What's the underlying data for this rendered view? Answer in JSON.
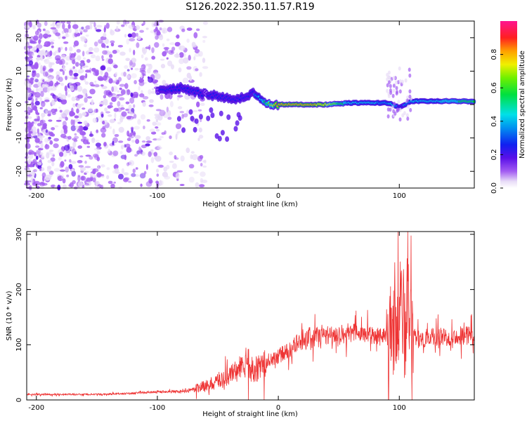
{
  "title": "S126.2022.350.11.57.R19",
  "chart_data": [
    {
      "type": "heatmap",
      "xlabel": "Height of straight line (km)",
      "ylabel": "Frequency (Hz)",
      "xlim": [
        -208,
        162
      ],
      "ylim": [
        -25,
        25
      ],
      "xticks": [
        -200,
        -100,
        0,
        100
      ],
      "yticks": [
        -20,
        -10,
        0,
        10,
        20
      ],
      "colorbar": {
        "label": "Normalized spectral amplitude",
        "range": [
          0.0,
          1.0
        ],
        "ticks": [
          "0.0",
          "0.2",
          "0.4",
          "0.6",
          "0.8"
        ],
        "tick_values": [
          0.0,
          0.2,
          0.4,
          0.6,
          0.8
        ]
      },
      "ridge": {
        "x": [
          -100,
          -90,
          -80,
          -70,
          -60,
          -50,
          -40,
          -30,
          -20,
          -10,
          0,
          20,
          40,
          60,
          80,
          90,
          95,
          100,
          110,
          130,
          162
        ],
        "freq": [
          4,
          4.5,
          5,
          4,
          3,
          2.5,
          1.5,
          2,
          3.5,
          0,
          0,
          0,
          0,
          0.5,
          0.5,
          0.5,
          0,
          -1,
          1,
          1,
          1
        ],
        "amplitude": [
          0.25,
          0.3,
          0.35,
          0.3,
          0.25,
          0.3,
          0.35,
          0.3,
          0.35,
          0.6,
          0.9,
          0.85,
          0.8,
          0.45,
          0.45,
          0.4,
          0.5,
          0.3,
          0.45,
          0.5,
          0.6
        ]
      },
      "noise_region": [
        -208,
        -60
      ]
    },
    {
      "type": "line",
      "xlabel": "Height of straight line (km)",
      "ylabel": "SNR (10 * v/v)",
      "xlim": [
        -208,
        162
      ],
      "ylim": [
        0,
        305
      ],
      "xticks": [
        -200,
        -100,
        0,
        100
      ],
      "yticks": [
        0,
        100,
        200,
        300
      ],
      "series": [
        {
          "name": "SNR",
          "color": "#ee3333",
          "x": [
            -208,
            -180,
            -150,
            -120,
            -100,
            -80,
            -60,
            -50,
            -40,
            -30,
            -20,
            -10,
            0,
            10,
            20,
            30,
            40,
            50,
            60,
            70,
            80,
            85,
            90,
            95,
            100,
            105,
            110,
            115,
            120,
            140,
            162
          ],
          "y": [
            10,
            10,
            10,
            12,
            15,
            15,
            25,
            35,
            45,
            60,
            55,
            65,
            80,
            90,
            110,
            115,
            118,
            120,
            122,
            120,
            118,
            115,
            125,
            130,
            150,
            140,
            115,
            110,
            112,
            115,
            118
          ]
        }
      ]
    }
  ]
}
